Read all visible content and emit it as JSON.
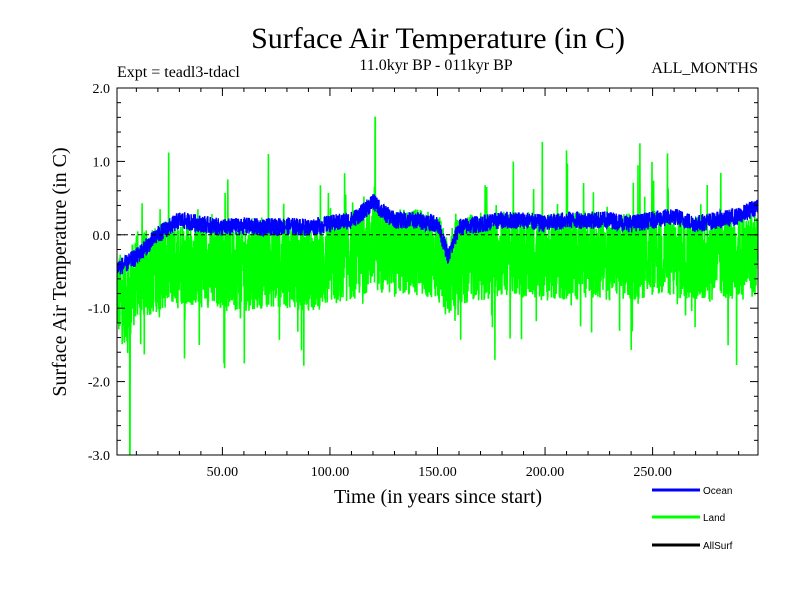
{
  "chart_data": {
    "type": "line",
    "title": "Surface Air Temperature (in C)",
    "subtitle_left": "Expt = teadl3-tdacl",
    "subtitle_center": "11.0kyr BP - 011kyr BP",
    "subtitle_right": "ALL_MONTHS",
    "xlabel": "Time (in years since start)",
    "ylabel": "Surface Air Temperature (in C)",
    "xlim": [
      1,
      299
    ],
    "ylim": [
      -3.0,
      2.0
    ],
    "xticks": [
      {
        "value": 50,
        "label": "50.00"
      },
      {
        "value": 100,
        "label": "100.00"
      },
      {
        "value": 150,
        "label": "150.00"
      },
      {
        "value": 200,
        "label": "200.00"
      },
      {
        "value": 250,
        "label": "250.00"
      }
    ],
    "yticks": [
      {
        "value": 2.0,
        "label": "2.0"
      },
      {
        "value": 1.0,
        "label": "1.0"
      },
      {
        "value": 0.0,
        "label": "0.0"
      },
      {
        "value": -1.0,
        "label": "-1.0"
      },
      {
        "value": -2.0,
        "label": "-2.0"
      },
      {
        "value": -3.0,
        "label": "-3.0"
      }
    ],
    "zero_line": true,
    "legend_position": "bottom-right",
    "series": [
      {
        "name": "Ocean",
        "color": "#0000ff",
        "anchors": {
          "x": [
            1,
            5,
            10,
            15,
            20,
            25,
            30,
            40,
            50,
            60,
            70,
            80,
            90,
            100,
            110,
            115,
            120,
            125,
            130,
            140,
            150,
            155,
            160,
            170,
            180,
            190,
            200,
            210,
            220,
            230,
            240,
            250,
            260,
            270,
            280,
            290,
            299
          ],
          "y": [
            -0.45,
            -0.4,
            -0.3,
            -0.15,
            0.0,
            0.1,
            0.2,
            0.15,
            0.1,
            0.12,
            0.1,
            0.12,
            0.1,
            0.15,
            0.2,
            0.3,
            0.45,
            0.3,
            0.2,
            0.2,
            0.15,
            -0.3,
            0.1,
            0.15,
            0.2,
            0.2,
            0.15,
            0.2,
            0.2,
            0.2,
            0.15,
            0.2,
            0.25,
            0.15,
            0.2,
            0.25,
            0.4
          ]
        },
        "noise_amplitude": 0.12
      },
      {
        "name": "Land",
        "color": "#00ff00",
        "anchors": {
          "x": [
            1,
            5,
            10,
            20,
            30,
            40,
            50,
            60,
            70,
            80,
            90,
            100,
            110,
            120,
            130,
            140,
            150,
            155,
            160,
            170,
            180,
            190,
            200,
            210,
            220,
            230,
            240,
            250,
            260,
            270,
            280,
            290,
            299
          ],
          "y": [
            -0.8,
            -0.9,
            -0.6,
            -0.45,
            -0.35,
            -0.4,
            -0.4,
            -0.45,
            -0.4,
            -0.4,
            -0.45,
            -0.4,
            -0.3,
            -0.15,
            -0.25,
            -0.25,
            -0.3,
            -0.55,
            -0.35,
            -0.3,
            -0.25,
            -0.3,
            -0.3,
            -0.3,
            -0.25,
            -0.3,
            -0.3,
            -0.25,
            -0.3,
            -0.3,
            -0.3,
            -0.3,
            -0.25
          ]
        },
        "noise_amplitude": 0.6,
        "min_value": -3.0,
        "min_at_x": 7,
        "max_value": 1.6,
        "max_at_x": 121
      },
      {
        "name": "AllSurf",
        "color": "#000000"
      }
    ]
  }
}
